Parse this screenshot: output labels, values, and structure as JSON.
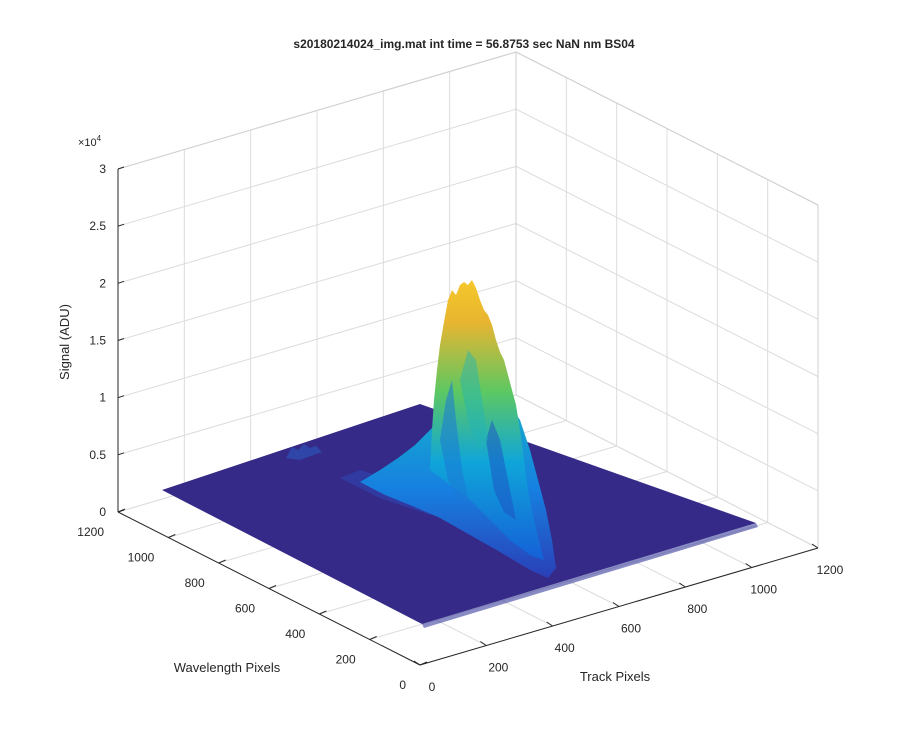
{
  "chart_data": {
    "type": "surface",
    "title": "s20180214024_img.mat int time = 56.8753 sec  NaN nm BS04",
    "xlabel": "Track Pixels",
    "ylabel": "Wavelength Pixels",
    "zlabel": "Signal (ADU)",
    "z_exponent_label": "×10",
    "z_exponent_power": "4",
    "xlim": [
      0,
      1200
    ],
    "ylim": [
      0,
      1200
    ],
    "zlim": [
      0,
      3
    ],
    "x_ticks": [
      "0",
      "200",
      "400",
      "600",
      "800",
      "1000",
      "1200"
    ],
    "y_ticks": [
      "0",
      "200",
      "400",
      "600",
      "800",
      "1000",
      "1200"
    ],
    "z_ticks": [
      "0",
      "0.5",
      "1",
      "1.5",
      "2",
      "2.5",
      "3"
    ],
    "grid": true,
    "colormap": "parula",
    "surface_extent": {
      "x": [
        0,
        1024
      ],
      "y": [
        0,
        1024
      ]
    },
    "peak": {
      "track_pixel": 510,
      "wavelength_pixel": 720,
      "signal": 2.0
    },
    "ridge_signal_profile": [
      {
        "wavelength_pixel": 1024,
        "signal": 0.0
      },
      {
        "wavelength_pixel": 920,
        "signal": 0.1
      },
      {
        "wavelength_pixel": 860,
        "signal": 0.3
      },
      {
        "wavelength_pixel": 800,
        "signal": 0.9
      },
      {
        "wavelength_pixel": 760,
        "signal": 1.5
      },
      {
        "wavelength_pixel": 720,
        "signal": 2.0
      },
      {
        "wavelength_pixel": 680,
        "signal": 1.7
      },
      {
        "wavelength_pixel": 640,
        "signal": 1.2
      },
      {
        "wavelength_pixel": 600,
        "signal": 0.6
      },
      {
        "wavelength_pixel": 560,
        "signal": 0.2
      },
      {
        "wavelength_pixel": 500,
        "signal": 0.0
      }
    ]
  },
  "colors": {
    "background": "#ffffff",
    "axis": "#262626",
    "grid": "#dcdcdc",
    "surface_base": "#352a87",
    "parula_low": "#352a87",
    "parula_mid": "#0fa5d9",
    "parula_high": "#f9fb0e"
  }
}
